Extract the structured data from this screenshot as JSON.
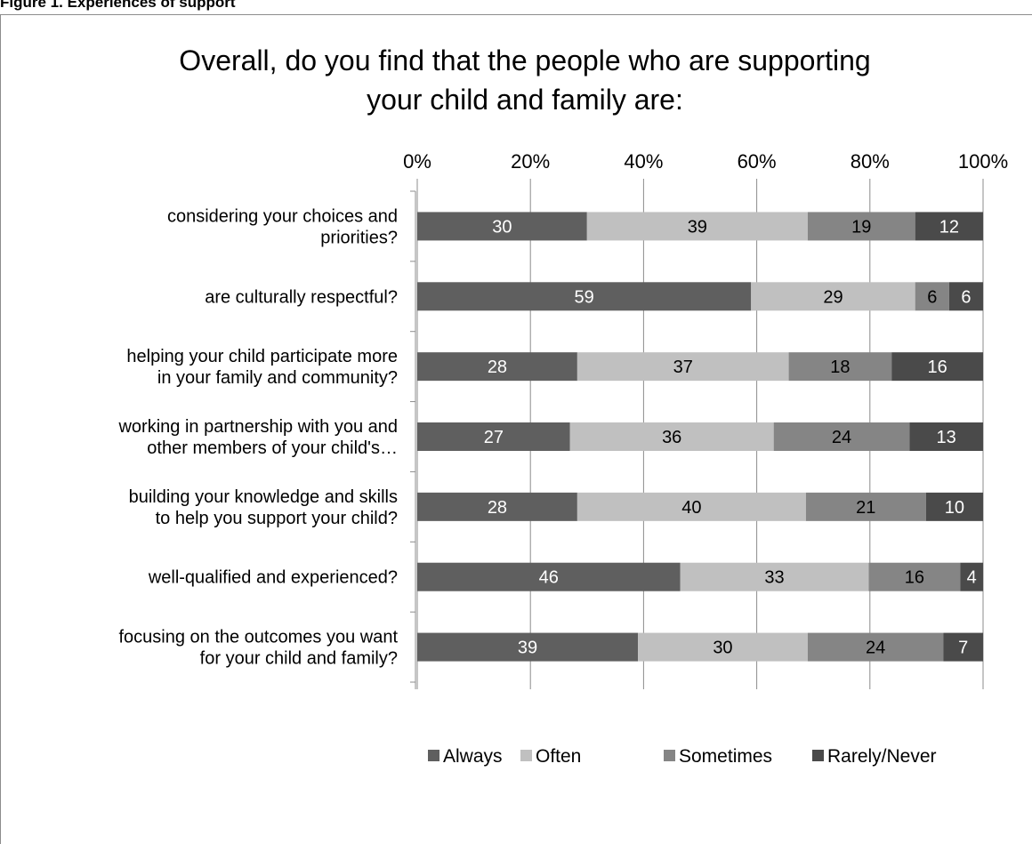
{
  "header": {
    "caption": "Figure 1. Experiences of support"
  },
  "chart_data": {
    "type": "bar",
    "orientation": "horizontal",
    "stacked": "percent",
    "title_lines": [
      "Overall, do you find that the people who are supporting",
      "your child and family are:"
    ],
    "xlabel": "",
    "ylabel": "",
    "x_ticks": [
      "0%",
      "20%",
      "40%",
      "60%",
      "80%",
      "100%"
    ],
    "xlim": [
      0,
      100
    ],
    "grid": "vertical",
    "legend_position": "bottom",
    "categories": [
      [
        "considering your choices and",
        "priorities?"
      ],
      [
        "are culturally respectful?"
      ],
      [
        "helping your child participate more",
        "in your family and community?"
      ],
      [
        "working in partnership with you and",
        "other members of your child's…"
      ],
      [
        "building your knowledge and skills",
        "to help you support your child?"
      ],
      [
        "well-qualified and experienced?"
      ],
      [
        "focusing on the outcomes you want",
        "for your child and family?"
      ]
    ],
    "series": [
      {
        "name": "Always",
        "color": "#5f5f5f",
        "label_color": "#ffffff",
        "values": [
          30,
          59,
          28,
          27,
          28,
          46,
          39
        ]
      },
      {
        "name": "Often",
        "color": "#c0c0c0",
        "label_color": "#000000",
        "values": [
          39,
          29,
          37,
          36,
          40,
          33,
          30
        ]
      },
      {
        "name": "Sometimes",
        "color": "#858585",
        "label_color": "#000000",
        "values": [
          19,
          6,
          18,
          24,
          21,
          16,
          24
        ]
      },
      {
        "name": "Rarely/Never",
        "color": "#4a4a4a",
        "label_color": "#ffffff",
        "values": [
          12,
          6,
          16,
          13,
          10,
          4,
          7
        ]
      }
    ]
  }
}
